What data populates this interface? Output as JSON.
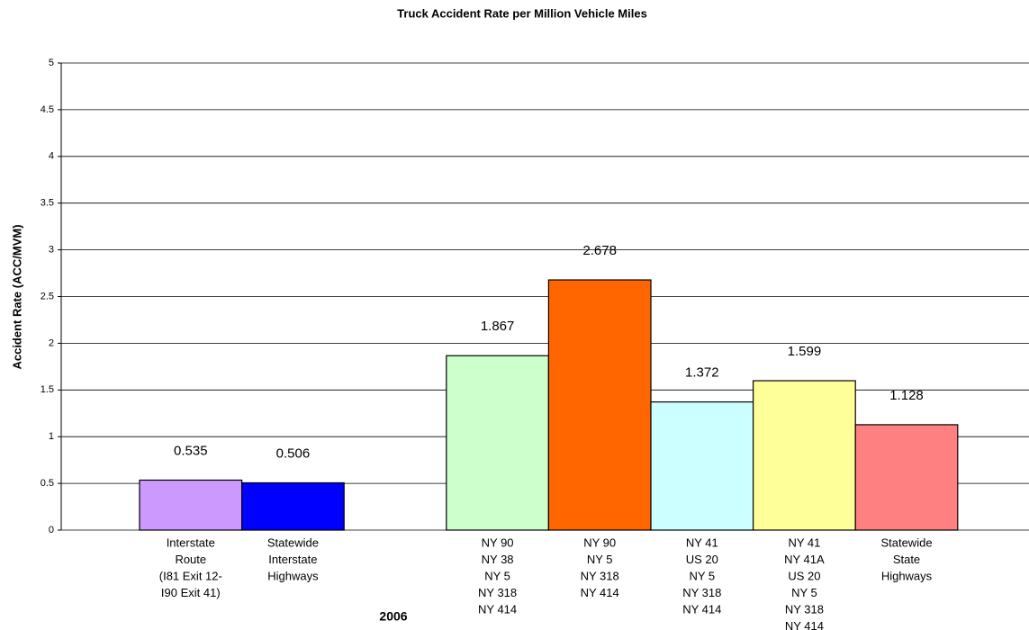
{
  "chart_data": {
    "type": "bar",
    "title": "Truck Accident Rate per Million Vehicle Miles",
    "y_label": "Accident Rate (ACC/MVM)",
    "x_label": "2006",
    "categories": [
      [
        "Interstate",
        "Route",
        "(I81 Exit 12-",
        "I90 Exit 41)"
      ],
      [
        "Statewide",
        "Interstate",
        "Highways"
      ],
      null,
      [
        "NY 90",
        "NY 38",
        "NY 5",
        "NY 318",
        "NY 414"
      ],
      [
        "NY 90",
        "NY 5",
        "NY 318",
        "NY 414"
      ],
      [
        "NY 41",
        "US 20",
        "NY 5",
        "NY 318",
        "NY 414"
      ],
      [
        "NY 41",
        "NY 41A",
        "US 20",
        "NY 5",
        "NY 318",
        "NY 414"
      ],
      [
        "Statewide",
        "State",
        "Highways"
      ]
    ],
    "values": [
      0.535,
      0.506,
      null,
      1.867,
      2.678,
      1.372,
      1.599,
      1.128
    ],
    "colors": [
      "#cc99ff",
      "#0000ff",
      null,
      "#ccffcc",
      "#ff6600",
      "#ccffff",
      "#ffff99",
      "#ff8080"
    ],
    "ylim": [
      0,
      5
    ],
    "yticks": [
      0,
      0.5,
      1,
      1.5,
      2,
      2.5,
      3,
      3.5,
      4,
      4.5,
      5
    ],
    "grid": true
  }
}
